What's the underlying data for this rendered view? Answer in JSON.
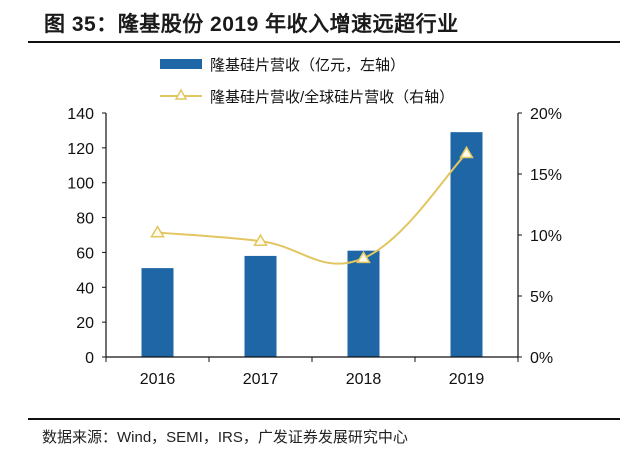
{
  "title": "图 35：隆基股份 2019 年收入增速远超行业",
  "source": "数据来源：Wind，SEMI，IRS，广发证券发展研究中心",
  "colors": {
    "bar": "#1f66a6",
    "line": "#e2c661",
    "axis": "#111111"
  },
  "chart_data": {
    "type": "bar",
    "title": "图 35：隆基股份 2019 年收入增速远超行业",
    "categories": [
      "2016",
      "2017",
      "2018",
      "2019"
    ],
    "series": [
      {
        "name": "隆基硅片营收（亿元，左轴）",
        "type": "bar",
        "axis": "left",
        "values": [
          51,
          58,
          61,
          129
        ]
      },
      {
        "name": "隆基硅片营收/全球硅片营收（右轴）",
        "type": "line",
        "axis": "right",
        "marker": "triangle",
        "values": [
          10.2,
          9.5,
          8.1,
          16.7
        ]
      }
    ],
    "left_axis": {
      "ylim": [
        0,
        140
      ],
      "ticks": [
        "0",
        "20",
        "40",
        "60",
        "80",
        "100",
        "120",
        "140"
      ]
    },
    "right_axis": {
      "ylim": [
        0,
        20
      ],
      "ticks": [
        "0%",
        "5%",
        "10%",
        "15%",
        "20%"
      ]
    },
    "xlabel": "",
    "ylabel": "",
    "grid": false,
    "legend": "top-center"
  }
}
